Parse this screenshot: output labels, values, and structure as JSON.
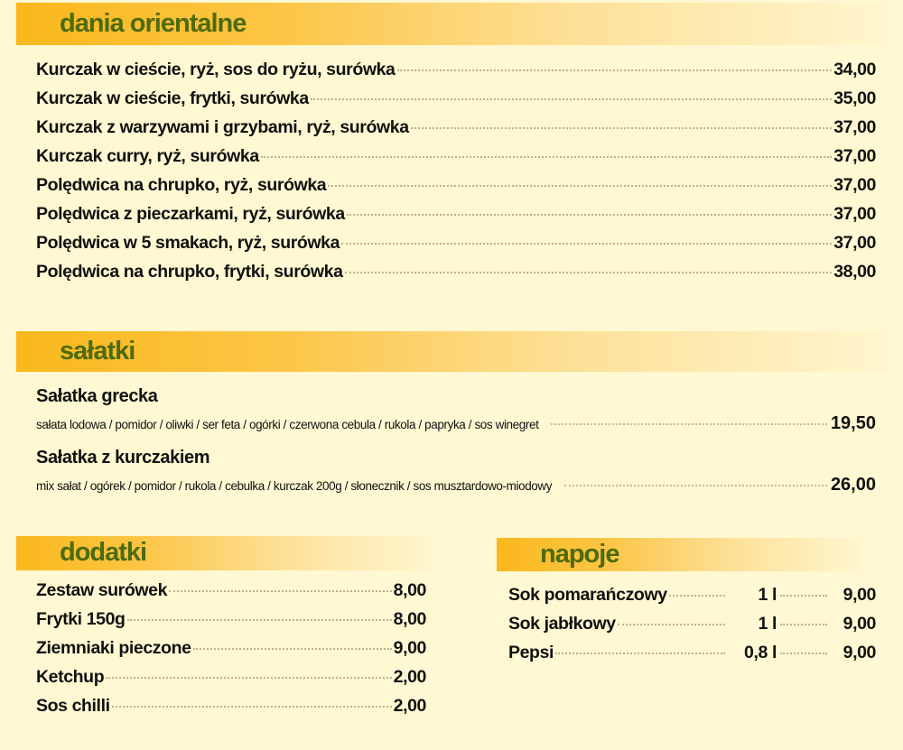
{
  "sections": {
    "oriental": {
      "title": "dania orientalne",
      "items": [
        {
          "name": "Kurczak w cieście, ryż, sos do ryżu, surówka",
          "price": "34,00"
        },
        {
          "name": "Kurczak w cieście, frytki, surówka",
          "price": "35,00"
        },
        {
          "name": "Kurczak z warzywami i grzybami, ryż, surówka",
          "price": "37,00"
        },
        {
          "name": "Kurczak curry, ryż, surówka",
          "price": "37,00"
        },
        {
          "name": "Polędwica na chrupko, ryż, surówka",
          "price": "37,00"
        },
        {
          "name": "Polędwica z pieczarkami, ryż, surówka",
          "price": "37,00"
        },
        {
          "name": "Polędwica w 5 smakach, ryż, surówka",
          "price": "37,00"
        },
        {
          "name": "Polędwica na chrupko, frytki, surówka",
          "price": "38,00"
        }
      ]
    },
    "salads": {
      "title": "sałatki",
      "items": [
        {
          "name": "Sałatka grecka",
          "description": "sałata lodowa / pomidor / oliwki / ser feta / ogórki / czerwona cebula / rukola / papryka / sos winegret",
          "price": "19,50"
        },
        {
          "name": "Sałatka z kurczakiem",
          "description": "mix sałat / ogórek / pomidor / rukola / cebulka / kurczak 200g / słonecznik / sos musztardowo-miodowy",
          "price": "26,00"
        }
      ]
    },
    "extras": {
      "title": "dodatki",
      "items": [
        {
          "name": "Zestaw surówek",
          "price": "8,00"
        },
        {
          "name": "Frytki 150g",
          "price": "8,00"
        },
        {
          "name": "Ziemniaki pieczone",
          "price": "9,00"
        },
        {
          "name": "Ketchup",
          "price": "2,00"
        },
        {
          "name": "Sos chilli",
          "price": "2,00"
        }
      ]
    },
    "drinks": {
      "title": "napoje",
      "items": [
        {
          "name": "Sok pomarańczowy",
          "volume": "1 l",
          "price": "9,00"
        },
        {
          "name": "Sok jabłkowy",
          "volume": "1 l",
          "price": "9,00"
        },
        {
          "name": "Pepsi",
          "volume": "0,8 l",
          "price": "9,00"
        }
      ]
    }
  },
  "colors": {
    "header_title": "#4d6b0e",
    "header_bar": "#f9b81c",
    "background": "#fff8d2"
  }
}
